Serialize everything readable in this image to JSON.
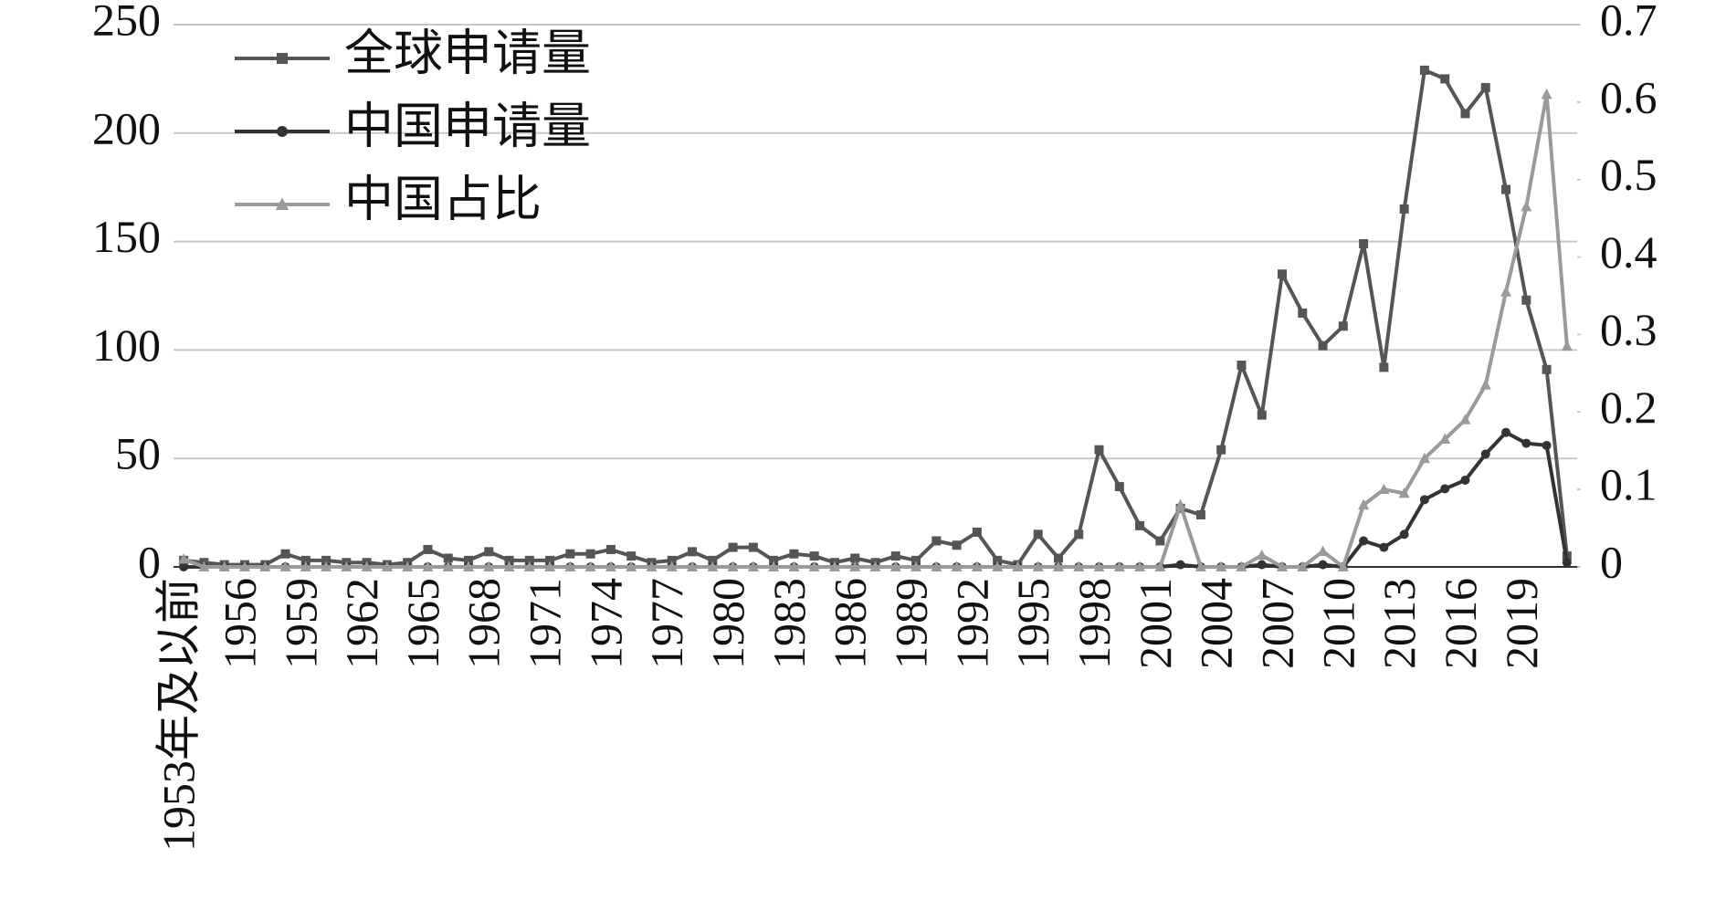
{
  "chart_data": {
    "type": "line",
    "categories": [
      "1953年及以前",
      null,
      null,
      "1956",
      null,
      null,
      "1959",
      null,
      null,
      "1962",
      null,
      null,
      "1965",
      null,
      null,
      "1968",
      null,
      null,
      "1971",
      null,
      null,
      "1974",
      null,
      null,
      "1977",
      null,
      null,
      "1980",
      null,
      null,
      "1983",
      null,
      null,
      "1986",
      null,
      null,
      "1989",
      null,
      null,
      "1992",
      null,
      null,
      "1995",
      null,
      null,
      "1998",
      null,
      null,
      "2001",
      null,
      null,
      "2004",
      null,
      null,
      "2007",
      null,
      null,
      "2010",
      null,
      null,
      "2013",
      null,
      null,
      "2016",
      null,
      null,
      "2019",
      null,
      null
    ],
    "series": [
      {
        "name": "全球申请量",
        "color": "#555555",
        "marker": "square",
        "values": [
          3,
          2,
          1,
          1,
          1,
          6,
          3,
          3,
          2,
          2,
          1,
          2,
          8,
          4,
          3,
          7,
          3,
          3,
          3,
          6,
          6,
          8,
          5,
          2,
          3,
          7,
          3,
          9,
          9,
          3,
          6,
          5,
          2,
          4,
          2,
          5,
          3,
          12,
          10,
          16,
          3,
          1,
          15,
          4,
          15,
          54,
          37,
          19,
          12,
          27,
          24,
          54,
          93,
          70,
          135,
          117,
          102,
          111,
          149,
          92,
          165,
          229,
          225,
          209,
          221,
          174,
          123,
          91,
          5
        ]
      },
      {
        "name": "中国申请量",
        "color": "#333333",
        "marker": "circle",
        "values": [
          0,
          0,
          0,
          0,
          0,
          0,
          0,
          0,
          0,
          0,
          0,
          0,
          0,
          0,
          0,
          0,
          0,
          0,
          0,
          0,
          0,
          0,
          0,
          0,
          0,
          0,
          0,
          0,
          0,
          0,
          0,
          0,
          0,
          0,
          0,
          0,
          0,
          0,
          0,
          0,
          0,
          0,
          0,
          0,
          0,
          0,
          0,
          0,
          0,
          1,
          0,
          0,
          0,
          1,
          0,
          0,
          1,
          0,
          12,
          9,
          15,
          31,
          36,
          40,
          52,
          62,
          57,
          56,
          2
        ]
      },
      {
        "name": "中国占比",
        "color": "#9a9a9a",
        "marker": "triangle",
        "axis": "y2",
        "values": [
          0.01,
          0,
          0,
          0,
          0,
          0,
          0,
          0,
          0,
          0,
          0,
          0,
          0,
          0,
          0,
          0,
          0,
          0,
          0,
          0,
          0,
          0,
          0,
          0,
          0,
          0,
          0,
          0,
          0,
          0,
          0,
          0,
          0,
          0,
          0,
          0,
          0,
          0,
          0,
          0,
          0,
          0,
          0,
          0,
          0,
          0,
          0,
          0,
          0,
          0.08,
          0,
          0,
          0,
          0.015,
          0,
          0,
          0.02,
          0,
          0.08,
          0.1,
          0.095,
          0.14,
          0.165,
          0.19,
          0.235,
          0.355,
          0.465,
          0.61,
          0.285
        ]
      }
    ],
    "ylim": [
      0,
      250
    ],
    "yticks": [
      0,
      50,
      100,
      150,
      200,
      250
    ],
    "y2lim": [
      0,
      0.7
    ],
    "y2ticks": [
      0,
      0.1,
      0.2,
      0.3,
      0.4,
      0.5,
      0.6,
      0.7
    ],
    "grid": true,
    "legend": "upper-left"
  }
}
